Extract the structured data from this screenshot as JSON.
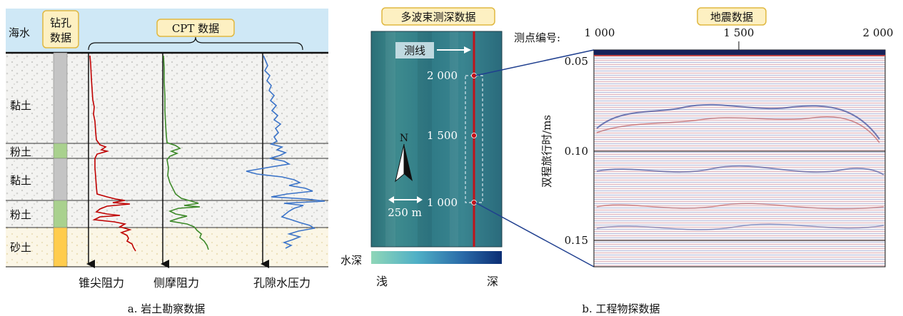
{
  "left_panel": {
    "seawater_label": "海水",
    "borehole_label_line1": "钻孔",
    "borehole_label_line2": "数据",
    "cpt_label": "CPT 数据",
    "layers": [
      "黏土",
      "粉土",
      "黏土",
      "粉土",
      "砂土"
    ],
    "curves": [
      "锥尖阻力",
      "侧摩阻力",
      "孔隙水压力"
    ],
    "caption": "a. 岩土勘察数据"
  },
  "middle_panel": {
    "title": "多波束测深数据",
    "survey_line_label": "测线",
    "station_labels": [
      "2 000",
      "1 500",
      "1 000"
    ],
    "north_label": "N",
    "scale_label": "250 m",
    "depth_label": "水深",
    "shallow_label": "浅",
    "deep_label": "深"
  },
  "right_panel": {
    "title": "地震数据",
    "station_prefix": "测点编号:",
    "station_ticks": [
      "1 000",
      "1 500",
      "2 000"
    ],
    "ylabel": "双程旅行时/ms",
    "yticks": [
      "0.05",
      "0.10",
      "0.15"
    ],
    "caption": "b. 工程物探数据"
  },
  "colors": {
    "sea": "#cfe8f6",
    "cone_curve": "#c00000",
    "friction_curve": "#3e8a2a",
    "pore_curve": "#3c74c8",
    "survey_line": "#c0141b",
    "label_box": "#fdf0c2",
    "label_box_border": "#e0b840",
    "connector": "#1f3f8f"
  }
}
